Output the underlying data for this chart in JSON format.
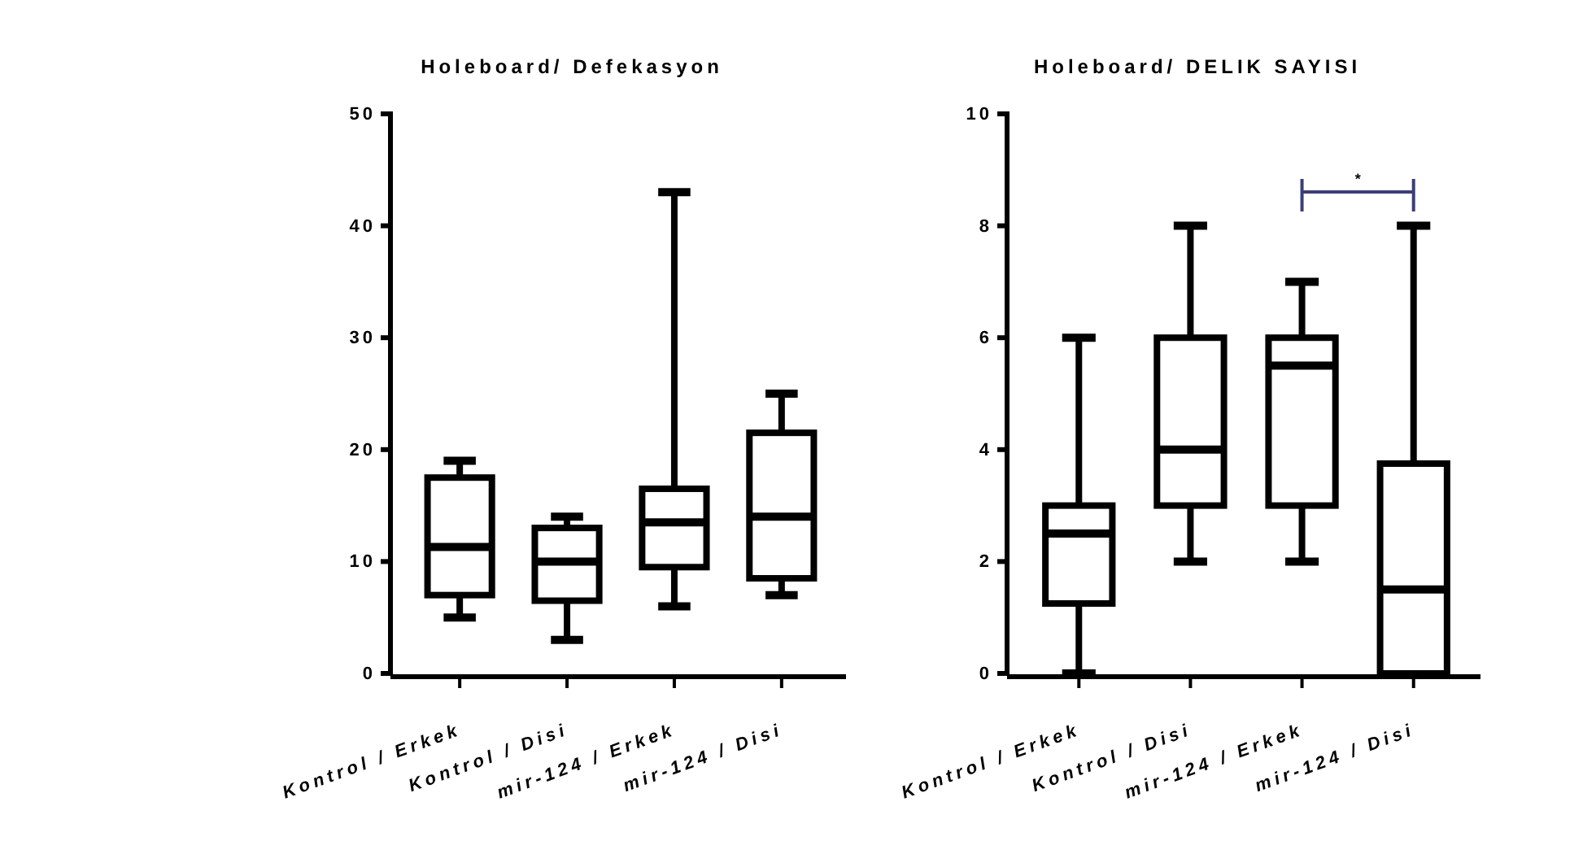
{
  "chart_data": [
    {
      "type": "box",
      "title": "Holeboard/ Defekasyon",
      "categories": [
        "Kontrol / Erkek",
        "Kontrol / Disi",
        "mir-124 / Erkek",
        "mir-124 / Disi"
      ],
      "ylim": [
        0,
        50
      ],
      "yticks": [
        0,
        10,
        20,
        30,
        40,
        50
      ],
      "series": [
        {
          "color": "#000000",
          "boxes": [
            {
              "low": 5,
              "q1": 7,
              "median": 11.3,
              "q3": 17.5,
              "high": 19
            },
            {
              "low": 3,
              "q1": 6.5,
              "median": 10,
              "q3": 13,
              "high": 14
            },
            {
              "low": 6,
              "q1": 9.5,
              "median": 13.5,
              "q3": 16.5,
              "high": 43
            },
            {
              "low": 7,
              "q1": 8.5,
              "median": 14,
              "q3": 21.5,
              "high": 25
            }
          ]
        }
      ]
    },
    {
      "type": "box",
      "title": "Holeboard/ DELIK SAYISI",
      "categories": [
        "Kontrol / Erkek",
        "Kontrol / Disi",
        "mir-124 / Erkek",
        "mir-124 / Disi"
      ],
      "ylim": [
        0,
        10
      ],
      "yticks": [
        0,
        2,
        4,
        6,
        8,
        10
      ],
      "series": [
        {
          "color": "#000000",
          "boxes": [
            {
              "low": 0,
              "q1": 1.25,
              "median": 2.5,
              "q3": 3,
              "high": 6
            },
            {
              "low": 2,
              "q1": 3,
              "median": 4,
              "q3": 6,
              "high": 8
            },
            {
              "low": 2,
              "q1": 3,
              "median": 5.5,
              "q3": 6,
              "high": 7
            },
            {
              "low": 0,
              "q1": 0,
              "median": 1.5,
              "q3": 3.75,
              "high": 8
            }
          ]
        }
      ],
      "annotations": [
        "*"
      ]
    }
  ]
}
